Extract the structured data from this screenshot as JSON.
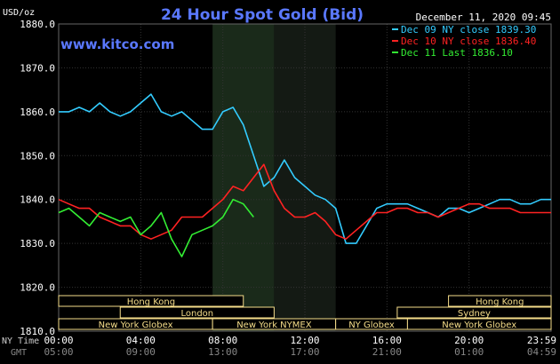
{
  "chart_data": {
    "type": "line",
    "title": "24 Hour Spot Gold (Bid)",
    "subtitle": "www.kitco.com",
    "timestamp": "December 11, 2020 09:45",
    "ylabel": "USD/oz",
    "ylim": [
      1810,
      1880
    ],
    "yticks": [
      "1880.0",
      "1870.0",
      "1860.0",
      "1850.0",
      "1840.0",
      "1830.0",
      "1820.0",
      "1810.0"
    ],
    "xlim": [
      0,
      24
    ],
    "xlabels": {
      "ny_label": "NY Time",
      "gmt_label": "GMT",
      "ny": [
        "00:00",
        "04:00",
        "08:00",
        "12:00",
        "16:00",
        "20:00",
        "23:59"
      ],
      "gmt": [
        "05:00",
        "09:00",
        "13:00",
        "17:00",
        "21:00",
        "01:00",
        "04:59"
      ]
    },
    "grid": true,
    "legend_position": "top-right",
    "overlap_shading": [
      [
        7.5,
        10.5
      ],
      [
        10.5,
        13.5
      ]
    ],
    "sessions": [
      {
        "name": "Hong Kong",
        "row": 0,
        "start": 0,
        "end": 9
      },
      {
        "name": "Hong Kong",
        "row": 0,
        "start": 19,
        "end": 24
      },
      {
        "name": "London",
        "row": 1,
        "start": 3,
        "end": 10.5
      },
      {
        "name": "Sydney",
        "row": 1,
        "start": 16.5,
        "end": 24
      },
      {
        "name": "New York Globex",
        "row": 2,
        "start": 0,
        "end": 7.5
      },
      {
        "name": "New York NYMEX",
        "row": 2,
        "start": 7.5,
        "end": 13.5
      },
      {
        "name": "NY Globex",
        "row": 2,
        "start": 13.5,
        "end": 17
      },
      {
        "name": "New York Globex",
        "row": 2,
        "start": 17,
        "end": 24
      }
    ],
    "series": [
      {
        "name": "Dec 09 NY close 1839.30",
        "color": "#33ccff",
        "x": [
          0,
          0.5,
          1,
          1.5,
          2,
          2.5,
          3,
          3.5,
          4,
          4.5,
          5,
          5.5,
          6,
          6.5,
          7,
          7.5,
          8,
          8.5,
          9,
          9.5,
          10,
          10.5,
          11,
          11.5,
          12,
          12.5,
          13,
          13.5,
          14,
          14.5,
          15,
          15.5,
          16,
          16.5,
          17,
          17.5,
          18,
          18.5,
          19,
          19.5,
          20,
          20.5,
          21,
          21.5,
          22,
          22.5,
          23,
          23.5,
          24
        ],
        "y": [
          1860,
          1860,
          1861,
          1860,
          1862,
          1860,
          1859,
          1860,
          1862,
          1864,
          1860,
          1859,
          1860,
          1858,
          1856,
          1856,
          1860,
          1861,
          1857,
          1850,
          1843,
          1845,
          1849,
          1845,
          1843,
          1841,
          1840,
          1838,
          1830,
          1830,
          1834,
          1838,
          1839,
          1839,
          1839,
          1838,
          1837,
          1836,
          1838,
          1838,
          1837,
          1838,
          1839,
          1840,
          1840,
          1839,
          1839,
          1840,
          1840
        ]
      },
      {
        "name": "Dec 10 NY close 1836.40",
        "color": "#ff2222",
        "x": [
          0,
          0.5,
          1,
          1.5,
          2,
          2.5,
          3,
          3.5,
          4,
          4.5,
          5,
          5.5,
          6,
          6.5,
          7,
          7.5,
          8,
          8.5,
          9,
          9.5,
          10,
          10.5,
          11,
          11.5,
          12,
          12.5,
          13,
          13.5,
          14,
          14.5,
          15,
          15.5,
          16,
          16.5,
          17,
          17.5,
          18,
          18.5,
          19,
          19.5,
          20,
          20.5,
          21,
          21.5,
          22,
          22.5,
          23,
          23.5,
          24
        ],
        "y": [
          1840,
          1839,
          1838,
          1838,
          1836,
          1835,
          1834,
          1834,
          1832,
          1831,
          1832,
          1833,
          1836,
          1836,
          1836,
          1838,
          1840,
          1843,
          1842,
          1845,
          1848,
          1842,
          1838,
          1836,
          1836,
          1837,
          1835,
          1832,
          1831,
          1833,
          1835,
          1837,
          1837,
          1838,
          1838,
          1837,
          1837,
          1836,
          1837,
          1838,
          1839,
          1839,
          1838,
          1838,
          1838,
          1837,
          1837,
          1837,
          1837
        ]
      },
      {
        "name": "Dec 11 Last 1836.10",
        "color": "#33ee33",
        "x": [
          0,
          0.5,
          1,
          1.5,
          2,
          2.5,
          3,
          3.5,
          4,
          4.5,
          5,
          5.5,
          6,
          6.5,
          7,
          7.5,
          8,
          8.5,
          9,
          9.5
        ],
        "y": [
          1837,
          1838,
          1836,
          1834,
          1837,
          1836,
          1835,
          1836,
          1832,
          1834,
          1837,
          1831,
          1827,
          1832,
          1833,
          1834,
          1836,
          1840,
          1839,
          1836
        ]
      }
    ]
  }
}
